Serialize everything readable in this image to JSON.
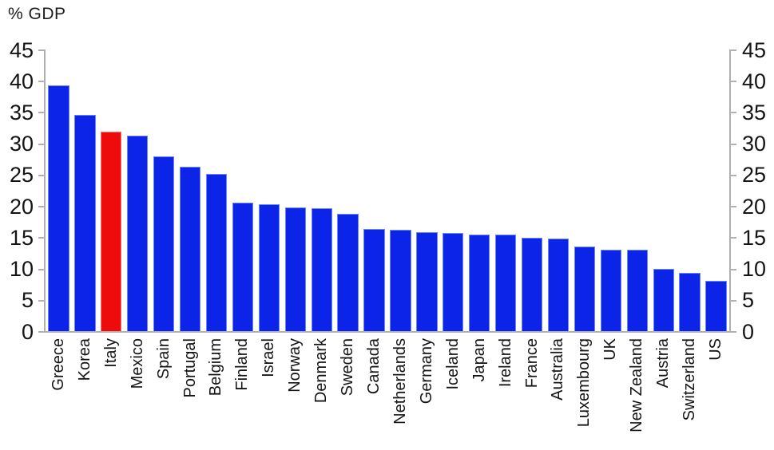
{
  "title": "% GDP",
  "colors": {
    "bar": "#0b24e8",
    "bar_edge": "#6b85f2",
    "highlight": "#ee0b0b",
    "highlight_edge": "#f57b7b",
    "axis": "#b0b0b0",
    "text": "#141414"
  },
  "chart_data": {
    "type": "bar",
    "title": "% GDP",
    "categories": [
      "Greece",
      "Korea",
      "Italy",
      "Mexico",
      "Spain",
      "Portugal",
      "Belgium",
      "Finland",
      "Israel",
      "Norway",
      "Denmark",
      "Sweden",
      "Canada",
      "Netherlands",
      "Germany",
      "Iceland",
      "Japan",
      "Ireland",
      "France",
      "Australia",
      "Luxembourg",
      "UK",
      "New Zealand",
      "Austria",
      "Switzerland",
      "US"
    ],
    "values": [
      39.4,
      34.7,
      32.0,
      31.4,
      28.0,
      26.4,
      25.2,
      20.7,
      20.4,
      19.9,
      19.8,
      18.9,
      16.5,
      16.3,
      16.0,
      15.8,
      15.6,
      15.6,
      15.1,
      14.9,
      13.6,
      13.2,
      13.1,
      10.1,
      9.4,
      8.2
    ],
    "highlighted_category": "Italy",
    "xlabel": "",
    "ylabel": "% GDP",
    "ylim": [
      0,
      45
    ],
    "y_ticks": [
      0,
      5,
      10,
      15,
      20,
      25,
      30,
      35,
      40,
      45
    ],
    "y_axis_sides": [
      "left",
      "right"
    ],
    "x_tick_rotation": 90,
    "grid": false,
    "legend": false
  }
}
